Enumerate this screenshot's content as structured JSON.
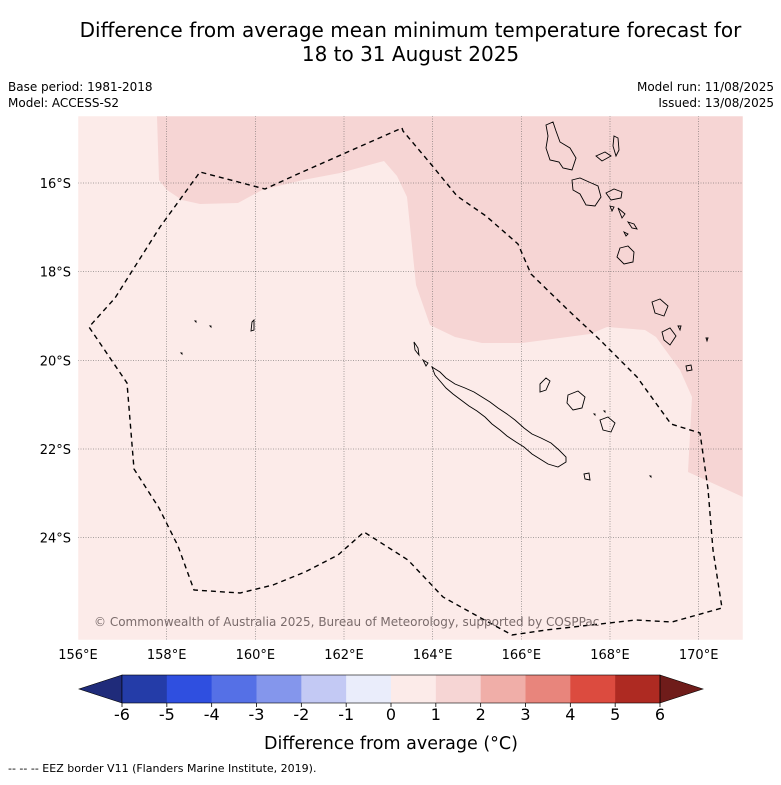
{
  "title": {
    "line1": "Difference from average mean minimum temperature forecast for",
    "line2": "18 to 31 August 2025"
  },
  "meta_left": {
    "base_period": "Base period: 1981-2018",
    "model": "Model: ACCESS-S2"
  },
  "meta_right": {
    "model_run": "Model run: 11/08/2025",
    "issued": "Issued: 13/08/2025"
  },
  "map": {
    "lon_range": [
      156,
      171
    ],
    "lat_range": [
      -26.3,
      -14.5
    ],
    "lon_ticks": [
      "156°E",
      "158°E",
      "160°E",
      "162°E",
      "164°E",
      "166°E",
      "168°E",
      "170°E"
    ],
    "lat_ticks": [
      "16°S",
      "18°S",
      "20°S",
      "22°S",
      "24°S"
    ],
    "copyright": "© Commonwealth of Australia 2025, Bureau of Meteorology, supported by COSPPac",
    "background_category": "0 to 1",
    "anomaly_region_category": "1 to 2"
  },
  "colorbar": {
    "ticks": [
      "-6",
      "-5",
      "-4",
      "-3",
      "-2",
      "-1",
      "0",
      "1",
      "2",
      "3",
      "4",
      "5",
      "6"
    ],
    "colors": [
      "#1f2b7a",
      "#243ca8",
      "#2f4fe0",
      "#5570e6",
      "#8496ec",
      "#c3c9f4",
      "#eaedfb",
      "#fcebe9",
      "#f6d5d4",
      "#f0aea8",
      "#e8857c",
      "#dc4b3f",
      "#ae2a22",
      "#6f1c1a"
    ],
    "label": "Difference from average (°C)"
  },
  "footer": "--  --  -- EEZ border V11 (Flanders Marine Institute, 2019)."
}
